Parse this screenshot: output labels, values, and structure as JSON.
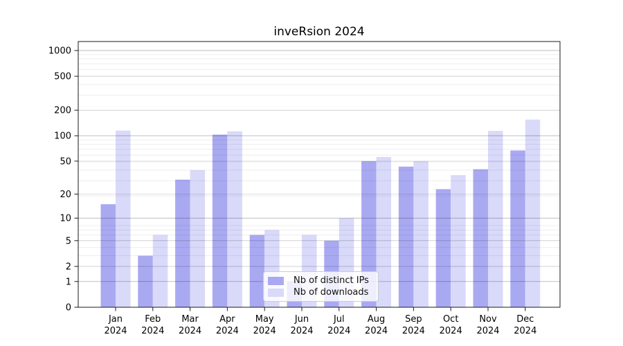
{
  "chart_data": {
    "type": "bar",
    "title": "inveRsion 2024",
    "categories": [
      "Jan",
      "Feb",
      "Mar",
      "Apr",
      "May",
      "Jun",
      "Jul",
      "Aug",
      "Sep",
      "Oct",
      "Nov",
      "Dec"
    ],
    "category_year": "2024",
    "series": [
      {
        "name": "Nb of distinct IPs",
        "color": "#a9a9f2",
        "values": [
          15,
          3,
          30,
          103,
          6,
          1,
          5,
          50,
          43,
          23,
          40,
          67
        ]
      },
      {
        "name": "Nb of downloads",
        "color": "#d9d9fa",
        "values": [
          115,
          6,
          39,
          113,
          7,
          6,
          10,
          56,
          50,
          34,
          114,
          155
        ]
      }
    ],
    "xlabel": "",
    "ylabel": "",
    "yscale": "log1p",
    "yticks": [
      0,
      1,
      2,
      5,
      10,
      20,
      50,
      100,
      200,
      500,
      1000
    ],
    "ylim": [
      0,
      1270
    ],
    "grid": true,
    "legend_position": "lower-center"
  }
}
